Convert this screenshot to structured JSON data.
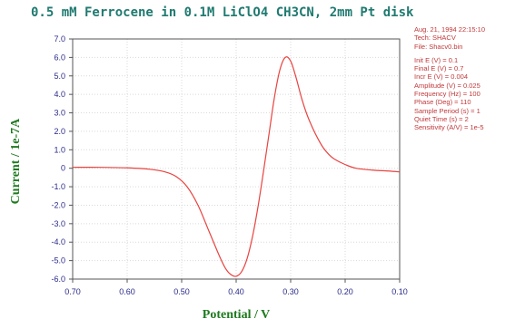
{
  "chart_data": {
    "type": "line",
    "title": "0.5 mM Ferrocene in 0.1M LiClO4 CH3CN, 2mm Pt disk",
    "xlabel": "Potential / V",
    "ylabel": "Current / 1e-7A",
    "xlim": [
      0.7,
      0.1
    ],
    "ylim": [
      -6.0,
      7.0
    ],
    "x_reversed": true,
    "grid": true,
    "xticks": [
      "0.70",
      "0.60",
      "0.50",
      "0.40",
      "0.30",
      "0.20",
      "0.10"
    ],
    "yticks": [
      "7.0",
      "6.0",
      "5.0",
      "4.0",
      "3.0",
      "2.0",
      "1.0",
      "0",
      "-1.0",
      "-2.0",
      "-3.0",
      "-4.0",
      "-5.0",
      "-6.0"
    ],
    "series": [
      {
        "color": "#e8433f",
        "x": [
          0.7,
          0.65,
          0.6,
          0.56,
          0.53,
          0.51,
          0.49,
          0.47,
          0.45,
          0.43,
          0.42,
          0.41,
          0.4,
          0.39,
          0.38,
          0.37,
          0.36,
          0.35,
          0.34,
          0.33,
          0.32,
          0.31,
          0.3,
          0.29,
          0.28,
          0.27,
          0.26,
          0.25,
          0.24,
          0.23,
          0.22,
          0.2,
          0.18,
          0.15,
          0.12,
          0.1
        ],
        "y": [
          0.05,
          0.05,
          0.02,
          -0.05,
          -0.2,
          -0.45,
          -1.0,
          -2.0,
          -3.4,
          -4.8,
          -5.4,
          -5.75,
          -5.85,
          -5.6,
          -4.9,
          -3.7,
          -2.1,
          -0.2,
          1.8,
          3.8,
          5.3,
          6.0,
          5.8,
          4.9,
          3.8,
          2.9,
          2.2,
          1.6,
          1.1,
          0.75,
          0.5,
          0.2,
          0.0,
          -0.1,
          -0.15,
          -0.2
        ]
      }
    ]
  },
  "info": {
    "date_time": "Aug. 21, 1994    22:15:10",
    "tech": "Tech: SHACV",
    "file": "File: Shacv0.bin",
    "params": [
      "Init E (V) = 0.1",
      "Final E (V) = 0.7",
      "Incr E (V) = 0.004",
      "Amplitude (V) = 0.025",
      "Frequency (Hz) = 100",
      "Phase (Deg) = 110",
      "Sample Period (s) = 1",
      "Quiet Time (s) = 2",
      "Sensitivity (A/V) = 1e-5"
    ]
  }
}
